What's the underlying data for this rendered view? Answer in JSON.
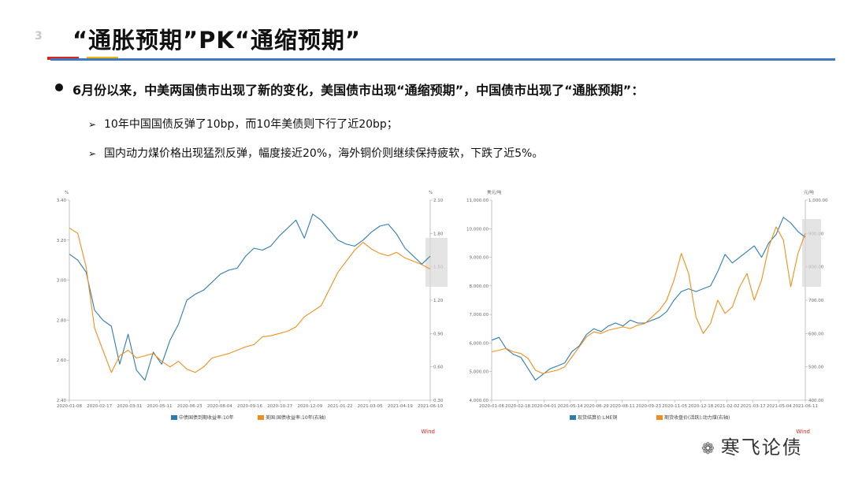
{
  "header": {
    "logo_text": "3",
    "title": "“通胀预期”PK“通缩预期”"
  },
  "body": {
    "main_point": "6月份以来，中美两国债市出现了新的变化，美国债市出现“通缩预期”，中国债市出现了“通胀预期”：",
    "sub_points": [
      "10年中国国债反弹了10bp，而10年美债则下行了近20bp；",
      "国内动力煤价格出现猛烈反弹，幅度接近20%，海外铜价则继续保持疲软，下跌了近5%。"
    ],
    "arrow_glyph": "➢"
  },
  "watermark": {
    "icon": "wechat-icon",
    "text": "寒飞论债"
  },
  "chart_data": [
    {
      "type": "line",
      "left_unit": "%",
      "right_unit": "%",
      "x_ticks": [
        "2020-01-08",
        "2020-02-17",
        "2020-03-31",
        "2020-05-11",
        "2020-06-23",
        "2020-08-04",
        "2020-09-16",
        "2020-10-27",
        "2020-12-09",
        "2021-01-22",
        "2021-03-05",
        "2021-04-19",
        "2021-06-10"
      ],
      "ylim_left": [
        2.4,
        3.4
      ],
      "y_ticks_left": [
        "3.40",
        "3.20",
        "3.00",
        "2.80",
        "2.60",
        "2.40"
      ],
      "ylim_right": [
        0.3,
        2.1
      ],
      "y_ticks_right": [
        "2.10",
        "1.80",
        "1.50",
        "1.20",
        "0.90",
        "0.60",
        "0.30"
      ],
      "series": [
        {
          "name": "中债国债到期收益率:10年",
          "axis": "left",
          "color": "#2e7cb0",
          "values": [
            3.13,
            3.1,
            3.04,
            2.85,
            2.8,
            2.77,
            2.58,
            2.73,
            2.55,
            2.5,
            2.64,
            2.58,
            2.7,
            2.78,
            2.9,
            2.93,
            2.95,
            2.99,
            3.03,
            3.05,
            3.06,
            3.12,
            3.16,
            3.15,
            3.17,
            3.22,
            3.26,
            3.3,
            3.21,
            3.33,
            3.3,
            3.25,
            3.2,
            3.18,
            3.17,
            3.2,
            3.24,
            3.27,
            3.28,
            3.23,
            3.16,
            3.12,
            3.08,
            3.12
          ]
        },
        {
          "name": "美国:国债收益率:10年(右轴)",
          "axis": "right",
          "color": "#f28e1c",
          "values": [
            1.85,
            1.8,
            1.5,
            0.95,
            0.75,
            0.55,
            0.7,
            0.75,
            0.68,
            0.7,
            0.72,
            0.65,
            0.6,
            0.65,
            0.58,
            0.55,
            0.6,
            0.68,
            0.7,
            0.72,
            0.75,
            0.78,
            0.8,
            0.87,
            0.88,
            0.9,
            0.92,
            0.96,
            1.05,
            1.1,
            1.15,
            1.3,
            1.45,
            1.55,
            1.65,
            1.72,
            1.66,
            1.62,
            1.6,
            1.63,
            1.58,
            1.55,
            1.52,
            1.48
          ]
        }
      ],
      "source": "Wind"
    },
    {
      "type": "line",
      "left_unit": "美元/吨",
      "right_unit": "元/吨",
      "x_ticks": [
        "2020-01-06",
        "2020-02-18",
        "2020-04-01",
        "2020-05-14",
        "2020-06-29",
        "2020-08-11",
        "2020-09-23",
        "2020-11-05",
        "2020-12-18",
        "2021-02-02",
        "2021-03-17",
        "2021-05-04",
        "2021-06-11"
      ],
      "ylim_left": [
        4000,
        11000
      ],
      "y_ticks_left": [
        "11,000.00",
        "10,000.00",
        "9,000.00",
        "8,000.00",
        "7,000.00",
        "6,000.00",
        "5,000.00",
        "4,000.00"
      ],
      "ylim_right": [
        400,
        1000
      ],
      "y_ticks_right": [
        "1,000.00",
        "900.00",
        "800.00",
        "700.00",
        "600.00",
        "500.00",
        "400.00"
      ],
      "series": [
        {
          "name": "现货结算价:LME铜",
          "axis": "left",
          "color": "#2e7cb0",
          "values": [
            6100,
            6200,
            5800,
            5600,
            5500,
            5100,
            4700,
            4900,
            5100,
            5200,
            5300,
            5700,
            5900,
            6300,
            6500,
            6400,
            6600,
            6700,
            6600,
            6800,
            6700,
            6700,
            6800,
            6900,
            7100,
            7500,
            7800,
            7900,
            7800,
            7900,
            8000,
            8500,
            9100,
            8800,
            9000,
            9200,
            9400,
            9000,
            9500,
            9800,
            10400,
            10200,
            9900,
            9700
          ]
        },
        {
          "name": "期货收盘价(活跃):动力煤(右轴)",
          "axis": "right",
          "color": "#f28e1c",
          "values": [
            545,
            550,
            555,
            545,
            540,
            525,
            490,
            480,
            485,
            490,
            500,
            530,
            560,
            590,
            605,
            600,
            610,
            615,
            620,
            615,
            625,
            630,
            650,
            670,
            700,
            760,
            840,
            780,
            650,
            600,
            630,
            700,
            660,
            680,
            740,
            780,
            700,
            760,
            860,
            920,
            880,
            740,
            840,
            900
          ]
        }
      ],
      "source": "Wind"
    }
  ]
}
